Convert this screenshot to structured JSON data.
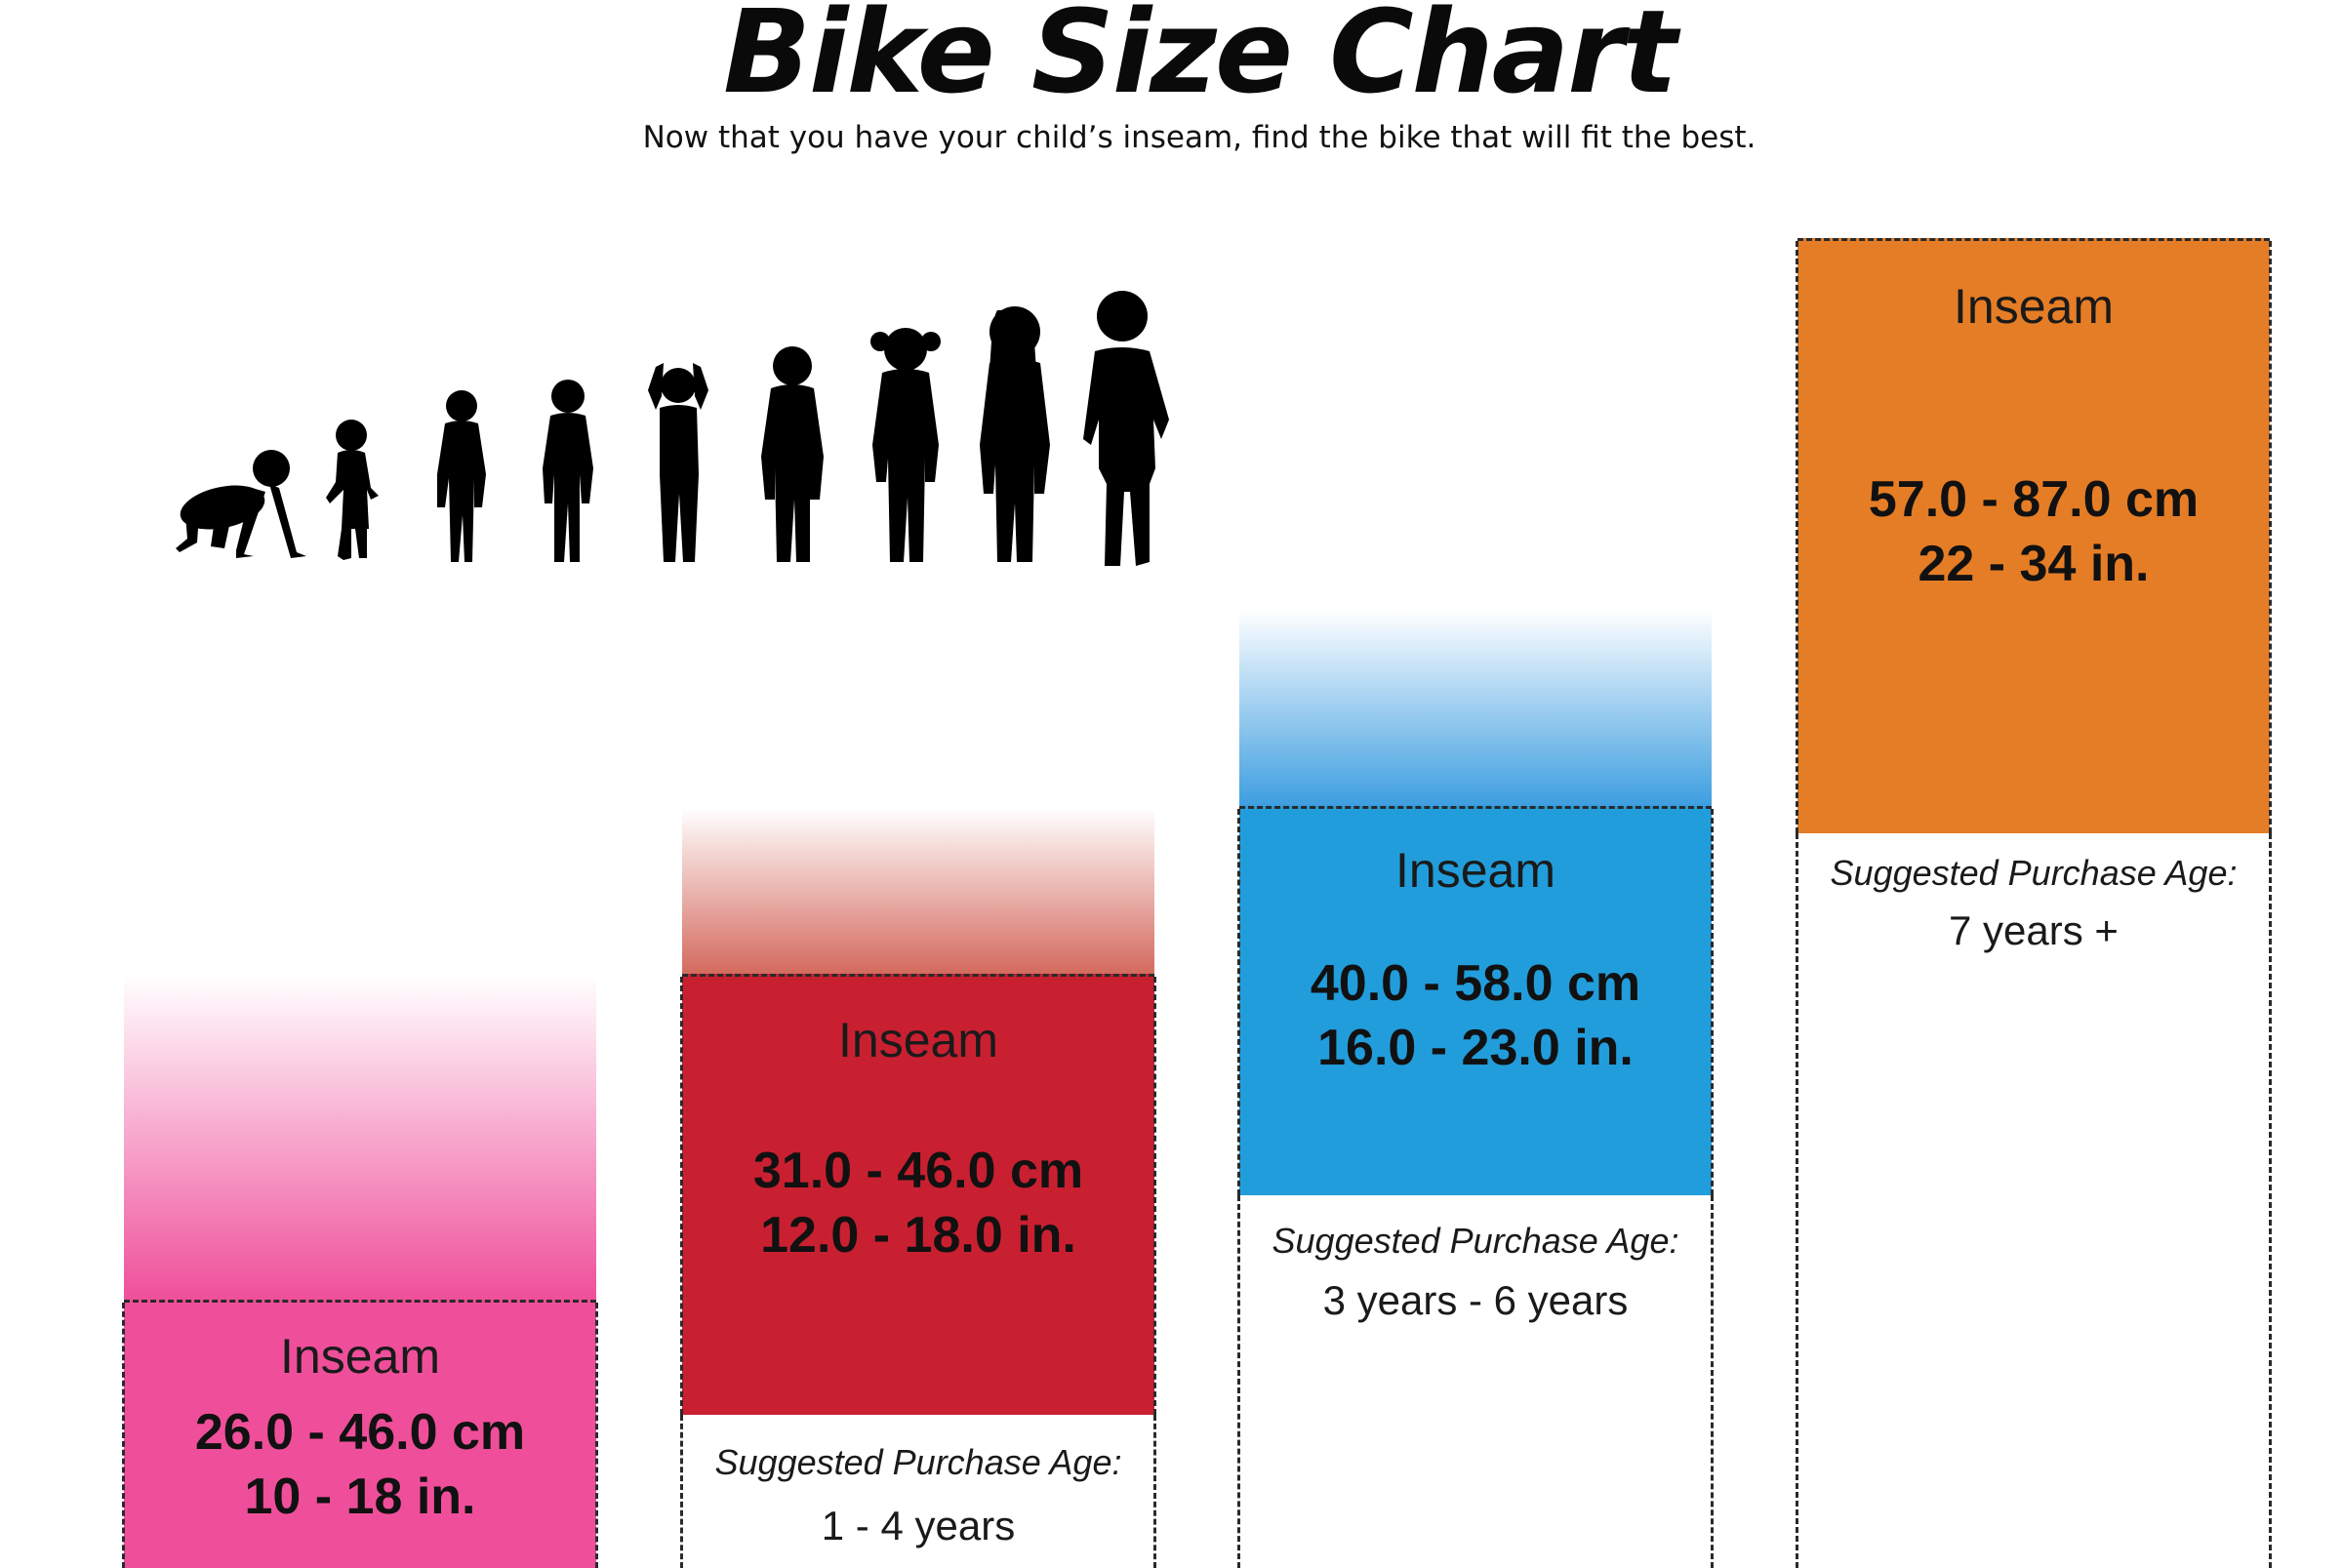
{
  "title": "Bike Size Chart",
  "subtitle": "Now that you have your child’s inseam, find the bike that will fit the best.",
  "silhouettes": [
    "crawling-baby-icon",
    "toddler-icon",
    "small-child-icon",
    "child-icon",
    "child-icon",
    "child-icon",
    "girl-pigtails-icon",
    "girl-icon",
    "boy-icon"
  ],
  "sizes": [
    {
      "inseam_label": "Inseam",
      "cm": "26.0 - 46.0 cm",
      "in": "10 - 18 in.",
      "age_label": "",
      "age": "",
      "color": "#ef4f9a",
      "fade_color": "#ef4f9a"
    },
    {
      "inseam_label": "Inseam",
      "cm": "31.0 - 46.0 cm",
      "in": "12.0 - 18.0 in.",
      "age_label": "Suggested Purchase Age:",
      "age": "1 - 4 years",
      "color": "#c92031",
      "fade_color": "#d46a5e"
    },
    {
      "inseam_label": "Inseam",
      "cm": "40.0 - 58.0 cm",
      "in": "16.0 - 23.0 in.",
      "age_label": "Suggested Purchase Age:",
      "age": "3 years - 6 years",
      "color": "#229ddb",
      "fade_color": "#3d9ee0"
    },
    {
      "inseam_label": "Inseam",
      "cm": "57.0 - 87.0 cm",
      "in": "22 - 34 in.",
      "age_label": "Suggested Purchase Age:",
      "age": "7 years +",
      "color": "#e57d26",
      "fade_color": "#e57d26"
    }
  ]
}
